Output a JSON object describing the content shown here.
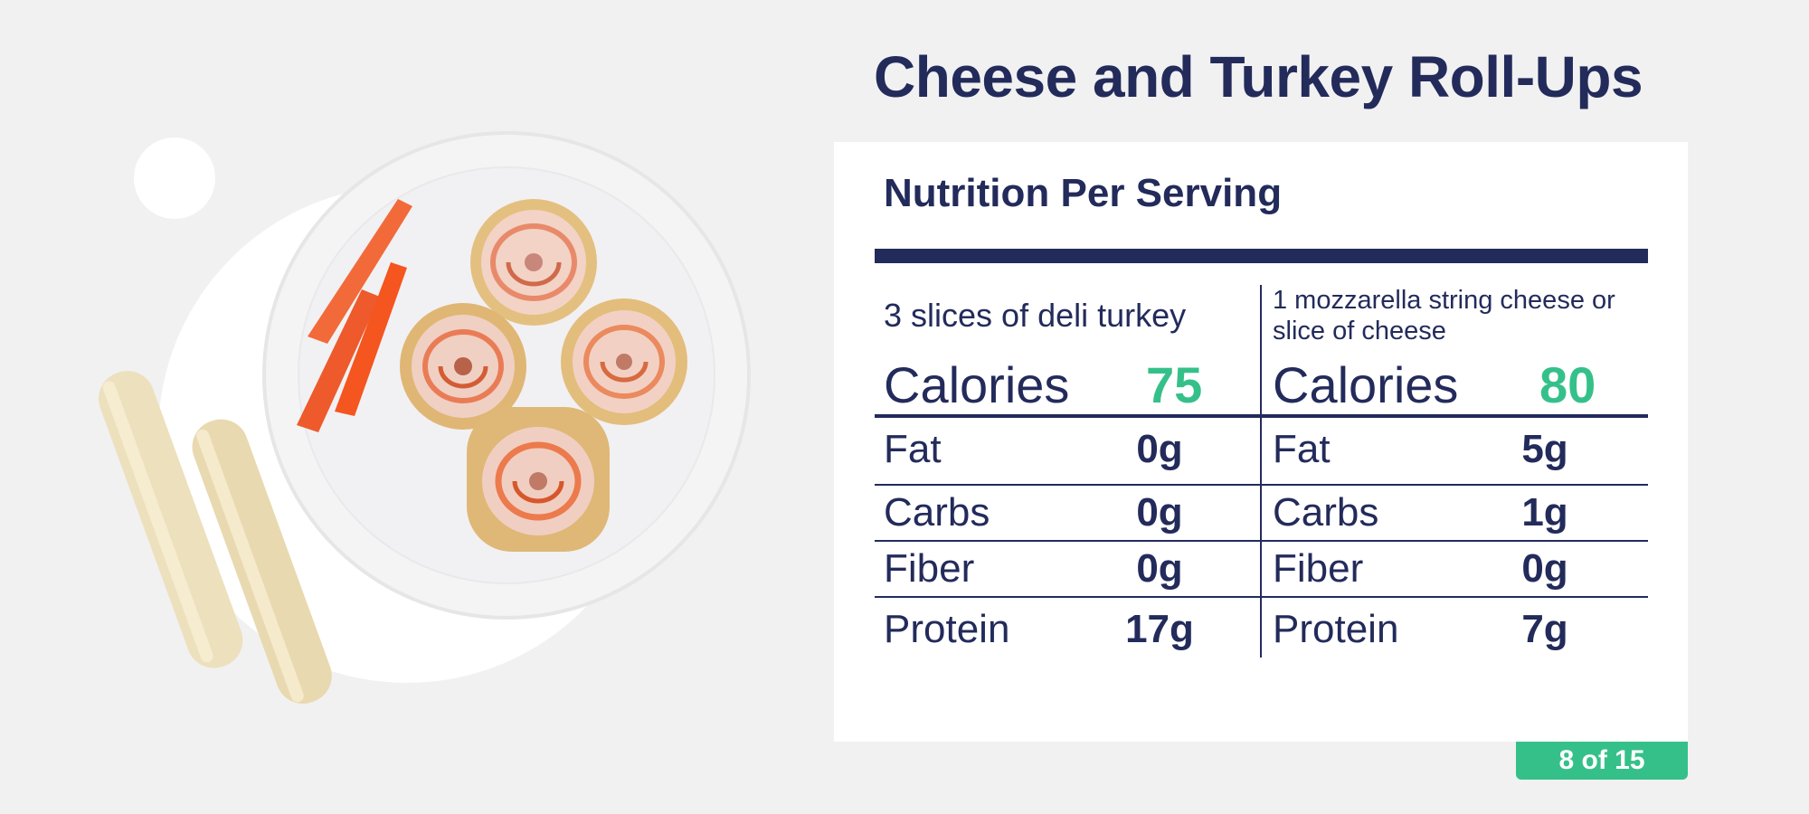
{
  "slide": {
    "title": "Cheese and Turkey Roll-Ups",
    "page_indicator": "8 of 15"
  },
  "nutrition": {
    "heading": "Nutrition Per Serving",
    "columns": [
      {
        "serving": "3 slices of deli turkey",
        "calories_label": "Calories",
        "calories_value": "75",
        "rows": [
          {
            "label": "Fat",
            "value": "0g"
          },
          {
            "label": "Carbs",
            "value": "0g"
          },
          {
            "label": "Fiber",
            "value": "0g"
          },
          {
            "label": "Protein",
            "value": "17g"
          }
        ]
      },
      {
        "serving": "1 mozzarella string cheese or slice of cheese",
        "calories_label": "Calories",
        "calories_value": "80",
        "rows": [
          {
            "label": "Fat",
            "value": "5g"
          },
          {
            "label": "Carbs",
            "value": "1g"
          },
          {
            "label": "Fiber",
            "value": "0g"
          },
          {
            "label": "Protein",
            "value": "7g"
          }
        ]
      }
    ]
  },
  "colors": {
    "navy": "#232b5b",
    "green": "#35c08a",
    "background": "#f1f1f1"
  },
  "image": {
    "icon": "food-plate-illustration"
  }
}
